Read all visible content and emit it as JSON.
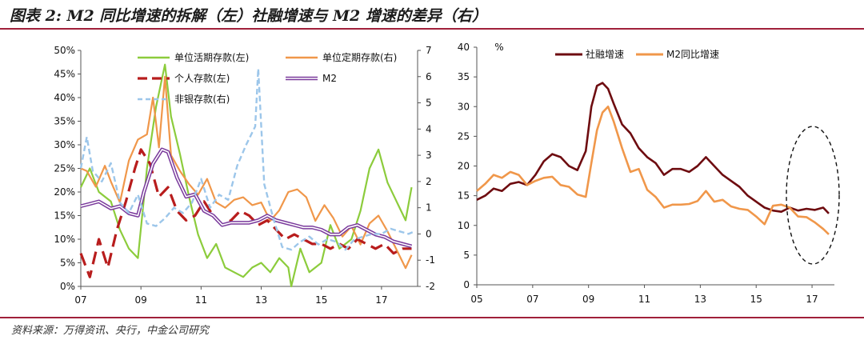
{
  "figure": {
    "title": "图表 2: M2 同比增速的拆解（左）社融增速与 M2 增速的差异（右）",
    "source": "资料来源：万得资讯、央行，中金公司研究"
  },
  "colors": {
    "rule": "#a0203a",
    "green": "#8ccc3c",
    "orange": "#f0974a",
    "darkred": "#b81d1d",
    "purple": "#7a3a9c",
    "lightblue": "#9cc6ea",
    "maroon": "#6e0c10",
    "ellipse": "#111111"
  },
  "chart_data": [
    {
      "type": "line",
      "ylim": [
        0,
        50
      ],
      "y2lim": [
        -2,
        7
      ],
      "xlim": [
        2007,
        2018.2
      ],
      "x_ticks": [
        "07",
        "09",
        "11",
        "13",
        "15",
        "17"
      ],
      "y_ticks": [
        "0%",
        "5%",
        "10%",
        "15%",
        "20%",
        "25%",
        "30%",
        "35%",
        "40%",
        "45%",
        "50%"
      ],
      "y2_ticks": [
        "-2",
        "-1",
        "0",
        "1",
        "2",
        "3",
        "4",
        "5",
        "6",
        "7"
      ],
      "legend": [
        {
          "label": "单位活期存款(左)",
          "style": "solid",
          "color": "green"
        },
        {
          "label": "单位定期存款(右)",
          "style": "solid",
          "color": "orange"
        },
        {
          "label": "个人存款(左)",
          "style": "dash",
          "color": "darkred"
        },
        {
          "label": "M2",
          "style": "double",
          "color": "purple"
        },
        {
          "label": "非银存款(右)",
          "style": "dash",
          "color": "lightblue"
        }
      ],
      "series": [
        {
          "name": "单位活期存款(左)",
          "axis": "left",
          "color": "green",
          "x": [
            2007.0,
            2007.3,
            2007.6,
            2008.0,
            2008.3,
            2008.6,
            2008.9,
            2009.2,
            2009.5,
            2009.8,
            2010.0,
            2010.3,
            2010.6,
            2010.9,
            2011.2,
            2011.5,
            2011.8,
            2012.1,
            2012.4,
            2012.7,
            2013.0,
            2013.3,
            2013.6,
            2013.9,
            2014.0,
            2014.3,
            2014.6,
            2015.0,
            2015.3,
            2015.6,
            2016.0,
            2016.3,
            2016.6,
            2016.9,
            2017.2,
            2017.5,
            2017.8,
            2018.0
          ],
          "values": [
            21,
            25,
            20,
            18,
            12,
            8,
            6,
            25,
            38,
            47,
            36,
            28,
            19,
            11,
            6,
            9,
            4,
            3,
            2,
            4,
            5,
            3,
            6,
            4,
            0,
            8,
            3,
            5,
            13,
            8,
            10,
            16,
            25,
            29,
            22,
            18,
            14,
            21
          ]
        },
        {
          "name": "单位定期存款(右)",
          "axis": "right",
          "color": "orange",
          "x": [
            2007.0,
            2007.2,
            2007.5,
            2007.8,
            2008.0,
            2008.3,
            2008.6,
            2008.9,
            2009.2,
            2009.4,
            2009.6,
            2009.8,
            2010.0,
            2010.3,
            2010.6,
            2010.9,
            2011.2,
            2011.5,
            2011.8,
            2012.1,
            2012.4,
            2012.7,
            2013.0,
            2013.3,
            2013.6,
            2013.9,
            2014.2,
            2014.5,
            2014.8,
            2015.1,
            2015.4,
            2015.7,
            2016.0,
            2016.3,
            2016.6,
            2016.9,
            2017.2,
            2017.5,
            2017.8,
            2018.0
          ],
          "values": [
            2.5,
            2.4,
            1.8,
            2.6,
            2.0,
            1.2,
            2.8,
            3.6,
            3.8,
            5.2,
            3.3,
            6.0,
            3.0,
            2.4,
            1.9,
            1.5,
            2.1,
            1.2,
            1.0,
            1.3,
            1.4,
            1.1,
            1.2,
            0.5,
            0.9,
            1.6,
            1.7,
            1.4,
            0.5,
            1.1,
            0.6,
            -0.1,
            0.3,
            -0.4,
            0.4,
            0.7,
            0.1,
            -0.6,
            -1.3,
            -0.8
          ]
        },
        {
          "name": "个人存款(左)",
          "axis": "left",
          "color": "darkred",
          "x": [
            2007.0,
            2007.3,
            2007.6,
            2007.9,
            2008.2,
            2008.5,
            2008.8,
            2009.0,
            2009.3,
            2009.6,
            2009.9,
            2010.2,
            2010.5,
            2010.8,
            2011.1,
            2011.4,
            2011.7,
            2012.0,
            2012.3,
            2012.6,
            2012.9,
            2013.2,
            2013.5,
            2013.8,
            2014.1,
            2014.4,
            2014.7,
            2015.0,
            2015.3,
            2015.6,
            2015.9,
            2016.2,
            2016.5,
            2016.8,
            2017.1,
            2017.4,
            2017.7,
            2018.0
          ],
          "values": [
            7,
            2,
            10,
            4,
            12,
            18,
            25,
            29,
            26,
            19,
            21,
            16,
            14,
            15,
            18,
            15,
            13,
            14,
            16,
            15,
            13,
            14,
            12,
            10,
            11,
            10,
            9,
            9,
            8,
            9,
            8,
            10,
            9,
            8,
            9,
            7,
            8,
            8
          ]
        },
        {
          "name": "M2",
          "axis": "left",
          "color": "purple",
          "x": [
            2007.0,
            2007.3,
            2007.6,
            2008.0,
            2008.3,
            2008.6,
            2008.9,
            2009.1,
            2009.4,
            2009.7,
            2009.9,
            2010.2,
            2010.5,
            2010.8,
            2011.1,
            2011.4,
            2011.7,
            2012.0,
            2012.3,
            2012.6,
            2012.9,
            2013.2,
            2013.5,
            2013.8,
            2014.1,
            2014.4,
            2014.7,
            2015.0,
            2015.3,
            2015.6,
            2015.9,
            2016.2,
            2016.5,
            2016.8,
            2017.1,
            2017.4,
            2017.7,
            2018.0
          ],
          "values": [
            17,
            17.5,
            18,
            16.5,
            17,
            15.5,
            15,
            20,
            26,
            29,
            28.5,
            23,
            19,
            19.5,
            16,
            15,
            13,
            13.5,
            13.5,
            13.5,
            14,
            15,
            14,
            13.5,
            13,
            12.5,
            12.5,
            12,
            11,
            11,
            12.5,
            13,
            12,
            11,
            10.5,
            9.5,
            9,
            8.5
          ]
        },
        {
          "name": "非银存款(右)",
          "axis": "right",
          "color": "lightblue",
          "x": [
            2007.0,
            2007.2,
            2007.4,
            2007.7,
            2008.0,
            2008.3,
            2008.6,
            2008.9,
            2009.2,
            2009.5,
            2009.8,
            2010.1,
            2010.4,
            2010.7,
            2011.0,
            2011.3,
            2011.6,
            2011.9,
            2012.2,
            2012.5,
            2012.8,
            2012.9,
            2013.1,
            2013.4,
            2013.7,
            2014.0,
            2014.3,
            2014.6,
            2014.9,
            2015.2,
            2015.5,
            2015.8,
            2016.1,
            2016.4,
            2016.7,
            2017.0,
            2017.3,
            2017.6,
            2017.9,
            2018.1
          ],
          "values": [
            2.5,
            3.7,
            2.4,
            2.0,
            2.7,
            1.2,
            0.8,
            1.5,
            0.4,
            0.3,
            0.6,
            1.0,
            0.8,
            1.2,
            2.1,
            1.0,
            1.5,
            1.3,
            2.6,
            3.4,
            4.1,
            6.3,
            1.9,
            0.6,
            -0.5,
            -0.6,
            -0.3,
            -0.1,
            -0.4,
            -0.2,
            -0.3,
            -0.6,
            -0.2,
            -0.1,
            0.0,
            0.0,
            0.2,
            0.1,
            0.0,
            0.1
          ]
        }
      ]
    },
    {
      "type": "line",
      "ylabel": "%",
      "ylim": [
        0,
        40
      ],
      "xlim": [
        2005,
        2017.8
      ],
      "x_ticks": [
        "05",
        "07",
        "09",
        "11",
        "13",
        "15",
        "17"
      ],
      "y_ticks": [
        "0",
        "5",
        "10",
        "15",
        "20",
        "25",
        "30",
        "35",
        "40"
      ],
      "legend": [
        {
          "label": "社融增速",
          "color": "maroon"
        },
        {
          "label": "M2同比增速",
          "color": "orange"
        }
      ],
      "series": [
        {
          "name": "社融增速",
          "color": "maroon",
          "x": [
            2005.0,
            2005.3,
            2005.6,
            2005.9,
            2006.2,
            2006.5,
            2006.8,
            2007.1,
            2007.4,
            2007.7,
            2008.0,
            2008.3,
            2008.6,
            2008.9,
            2009.1,
            2009.3,
            2009.5,
            2009.7,
            2009.9,
            2010.2,
            2010.5,
            2010.8,
            2011.1,
            2011.4,
            2011.7,
            2012.0,
            2012.3,
            2012.6,
            2012.9,
            2013.2,
            2013.5,
            2013.8,
            2014.1,
            2014.4,
            2014.7,
            2015.0,
            2015.3,
            2015.6,
            2015.9,
            2016.2,
            2016.5,
            2016.8,
            2017.1,
            2017.4,
            2017.6
          ],
          "values": [
            14.3,
            15.0,
            16.2,
            15.8,
            17.0,
            17.3,
            16.8,
            18.5,
            20.8,
            22.0,
            21.5,
            20.0,
            19.3,
            22.5,
            30.0,
            33.5,
            34.0,
            33.0,
            30.5,
            27.0,
            25.5,
            23.0,
            21.5,
            20.5,
            18.5,
            19.5,
            19.5,
            19.0,
            20.0,
            21.5,
            20.0,
            18.5,
            17.5,
            16.5,
            15.0,
            14.0,
            13.0,
            12.5,
            12.3,
            13.0,
            12.5,
            12.8,
            12.6,
            13.0,
            12.0
          ]
        },
        {
          "name": "M2同比增速",
          "color": "orange",
          "x": [
            2005.0,
            2005.3,
            2005.6,
            2005.9,
            2006.2,
            2006.5,
            2006.8,
            2007.1,
            2007.4,
            2007.7,
            2008.0,
            2008.3,
            2008.6,
            2008.9,
            2009.1,
            2009.3,
            2009.5,
            2009.7,
            2009.9,
            2010.2,
            2010.5,
            2010.8,
            2011.1,
            2011.4,
            2011.7,
            2012.0,
            2012.3,
            2012.6,
            2012.9,
            2013.2,
            2013.5,
            2013.8,
            2014.1,
            2014.4,
            2014.7,
            2015.0,
            2015.3,
            2015.6,
            2015.9,
            2016.2,
            2016.5,
            2016.8,
            2017.1,
            2017.4,
            2017.6
          ],
          "values": [
            15.8,
            17.0,
            18.5,
            18.0,
            19.0,
            18.5,
            16.8,
            17.5,
            18.0,
            18.2,
            16.8,
            16.5,
            15.2,
            14.8,
            20.5,
            26.0,
            29.0,
            30.0,
            27.5,
            23.0,
            19.0,
            19.5,
            16.0,
            14.8,
            13.0,
            13.5,
            13.5,
            13.6,
            14.1,
            15.8,
            14.0,
            14.3,
            13.2,
            12.8,
            12.6,
            11.5,
            10.2,
            13.3,
            13.5,
            13.0,
            11.5,
            11.4,
            10.5,
            9.4,
            8.5
          ]
        }
      ]
    }
  ]
}
